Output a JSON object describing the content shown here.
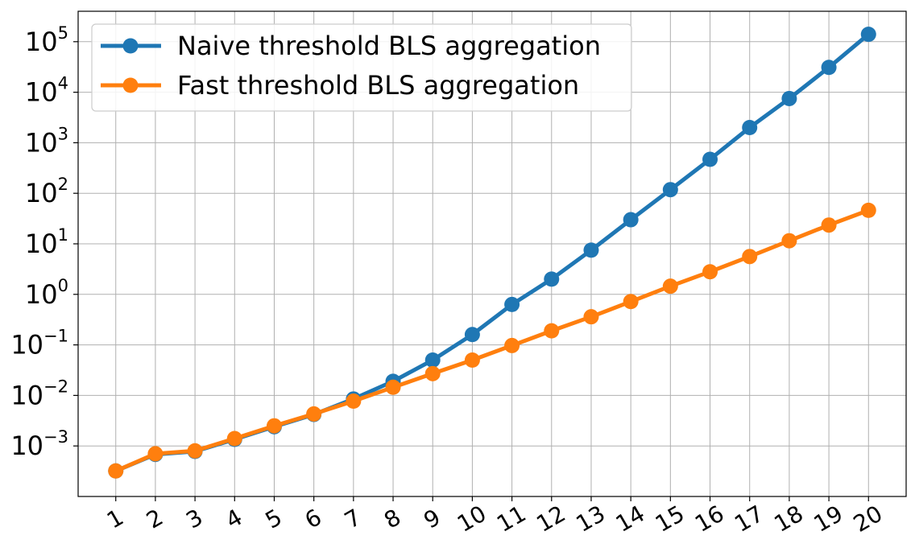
{
  "chart_data": {
    "type": "line",
    "title": "",
    "xlabel": "",
    "ylabel": "",
    "x": [
      1,
      2,
      3,
      4,
      5,
      6,
      7,
      8,
      9,
      10,
      11,
      12,
      13,
      14,
      15,
      16,
      17,
      18,
      19,
      20
    ],
    "x_tick_labels": [
      "1",
      "2",
      "3",
      "4",
      "5",
      "6",
      "7",
      "8",
      "9",
      "10",
      "11",
      "12",
      "13",
      "14",
      "15",
      "16",
      "17",
      "18",
      "19",
      "20"
    ],
    "yscale": "log",
    "ylim": [
      0.0001,
      400000
    ],
    "y_ticks": [
      {
        "value": 0.001,
        "base": "10",
        "exp": "−3"
      },
      {
        "value": 0.01,
        "base": "10",
        "exp": "−2"
      },
      {
        "value": 0.1,
        "base": "10",
        "exp": "−1"
      },
      {
        "value": 1,
        "base": "10",
        "exp": "0"
      },
      {
        "value": 10,
        "base": "10",
        "exp": "1"
      },
      {
        "value": 100,
        "base": "10",
        "exp": "2"
      },
      {
        "value": 1000,
        "base": "10",
        "exp": "3"
      },
      {
        "value": 10000,
        "base": "10",
        "exp": "4"
      },
      {
        "value": 100000,
        "base": "10",
        "exp": "5"
      }
    ],
    "grid": true,
    "legend_position": "top-left",
    "series": [
      {
        "name": "Naive threshold BLS aggregation",
        "color": "#1f77b4",
        "values": [
          0.00032,
          0.00068,
          0.00078,
          0.00135,
          0.0024,
          0.0042,
          0.0085,
          0.019,
          0.05,
          0.16,
          0.63,
          2.0,
          7.5,
          30,
          118,
          470,
          2000,
          7500,
          31000,
          140000
        ]
      },
      {
        "name": "Fast threshold BLS aggregation",
        "color": "#ff7f0e",
        "values": [
          0.00032,
          0.0007,
          0.0008,
          0.0014,
          0.0025,
          0.0043,
          0.0077,
          0.0145,
          0.027,
          0.05,
          0.097,
          0.19,
          0.36,
          0.72,
          1.45,
          2.8,
          5.6,
          11.5,
          23.5,
          46
        ]
      }
    ]
  }
}
